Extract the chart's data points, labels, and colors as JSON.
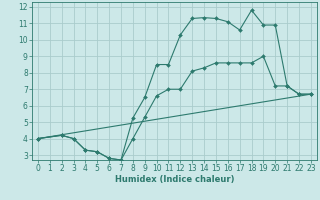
{
  "xlabel": "Humidex (Indice chaleur)",
  "bg_color": "#cce8e8",
  "grid_color": "#aacccc",
  "line_color": "#2d7a6e",
  "xlim": [
    -0.5,
    23.5
  ],
  "ylim": [
    2.7,
    12.3
  ],
  "xticks": [
    0,
    1,
    2,
    3,
    4,
    5,
    6,
    7,
    8,
    9,
    10,
    11,
    12,
    13,
    14,
    15,
    16,
    17,
    18,
    19,
    20,
    21,
    22,
    23
  ],
  "yticks": [
    3,
    4,
    5,
    6,
    7,
    8,
    9,
    10,
    11,
    12
  ],
  "line1_x": [
    0,
    2,
    3,
    4,
    5,
    6,
    7,
    8,
    9,
    10,
    11,
    12,
    13,
    14,
    15,
    16,
    17,
    18,
    19,
    20,
    21,
    22,
    23
  ],
  "line1_y": [
    4.0,
    4.2,
    4.0,
    3.3,
    3.2,
    2.8,
    2.7,
    5.25,
    6.5,
    8.5,
    8.5,
    10.3,
    11.3,
    11.35,
    11.3,
    11.1,
    10.6,
    11.8,
    10.9,
    10.9,
    7.2,
    6.7,
    6.7
  ],
  "line2_x": [
    0,
    2,
    3,
    4,
    5,
    6,
    7,
    8,
    9,
    10,
    11,
    12,
    13,
    14,
    15,
    16,
    17,
    18,
    19,
    20,
    21,
    22,
    23
  ],
  "line2_y": [
    4.0,
    4.2,
    4.0,
    3.3,
    3.2,
    2.8,
    2.7,
    4.0,
    5.3,
    6.6,
    7.0,
    7.0,
    8.1,
    8.3,
    8.6,
    8.6,
    8.6,
    8.6,
    9.0,
    7.2,
    7.2,
    6.7,
    6.7
  ],
  "line3_x": [
    0,
    23
  ],
  "line3_y": [
    4.0,
    6.7
  ],
  "tick_fontsize": 5.5,
  "xlabel_fontsize": 6.0
}
